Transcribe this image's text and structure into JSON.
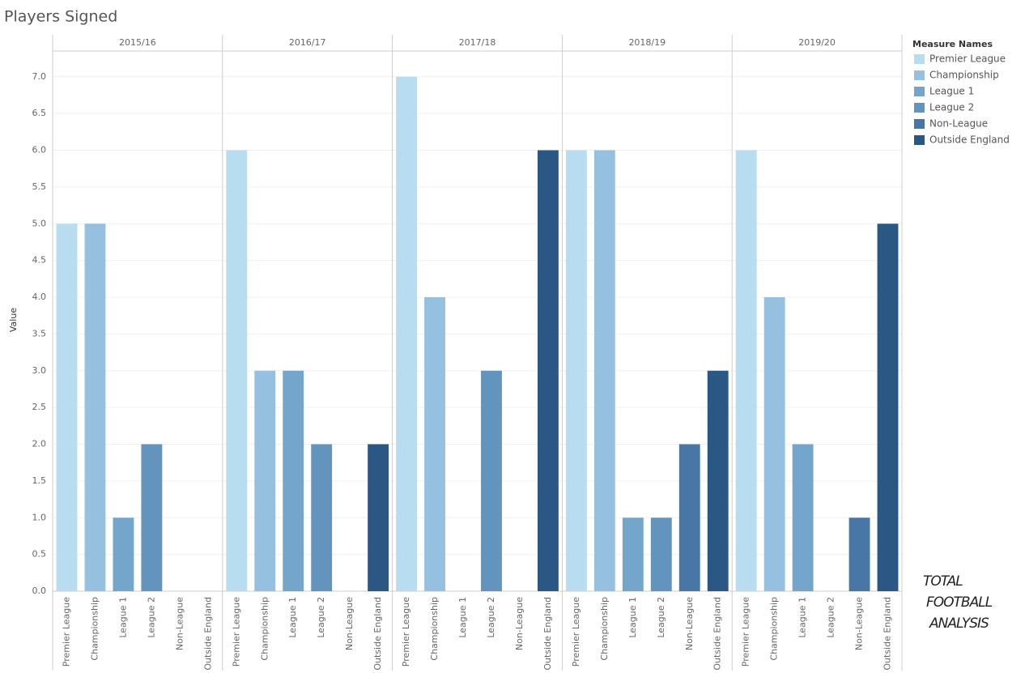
{
  "chart_data": {
    "type": "bar",
    "title": "Players Signed",
    "y_label": "Value",
    "legend_title": "Measure Names",
    "categories": [
      "2015/16",
      "2016/17",
      "2017/18",
      "2018/19",
      "2019/20"
    ],
    "series": [
      {
        "name": "Premier League",
        "color": "#b9ddf0",
        "values": [
          5,
          6,
          7,
          6,
          6
        ]
      },
      {
        "name": "Championship",
        "color": "#95c0e0",
        "values": [
          5,
          3,
          4,
          6,
          4
        ]
      },
      {
        "name": "League 1",
        "color": "#74a6cc",
        "values": [
          1,
          3,
          0,
          1,
          2
        ]
      },
      {
        "name": "League 2",
        "color": "#6394be",
        "values": [
          2,
          2,
          3,
          1,
          0
        ]
      },
      {
        "name": "Non-League",
        "color": "#4877a6",
        "values": [
          0,
          0,
          0,
          2,
          1
        ]
      },
      {
        "name": "Outside England",
        "color": "#2b5784",
        "values": [
          0,
          2,
          6,
          3,
          5
        ]
      }
    ],
    "ylim": [
      0,
      7.35
    ],
    "yticks": [
      {
        "value": 0,
        "label": "0.0"
      },
      0.5,
      {
        "value": 1,
        "label": "1.0"
      },
      1.5,
      {
        "value": 2,
        "label": "2.0"
      },
      2.5,
      {
        "value": 3,
        "label": "3.0"
      },
      3.5,
      {
        "value": 4,
        "label": "4.0"
      },
      4.5,
      {
        "value": 5,
        "label": "5.0"
      },
      5.5,
      {
        "value": 6,
        "label": "6.0"
      },
      6.5,
      {
        "value": 7,
        "label": "7.0"
      }
    ],
    "grid": true,
    "legend_position": "right",
    "watermark": [
      "TOTAL",
      "FOOTBALL",
      "ANALYSIS"
    ]
  }
}
